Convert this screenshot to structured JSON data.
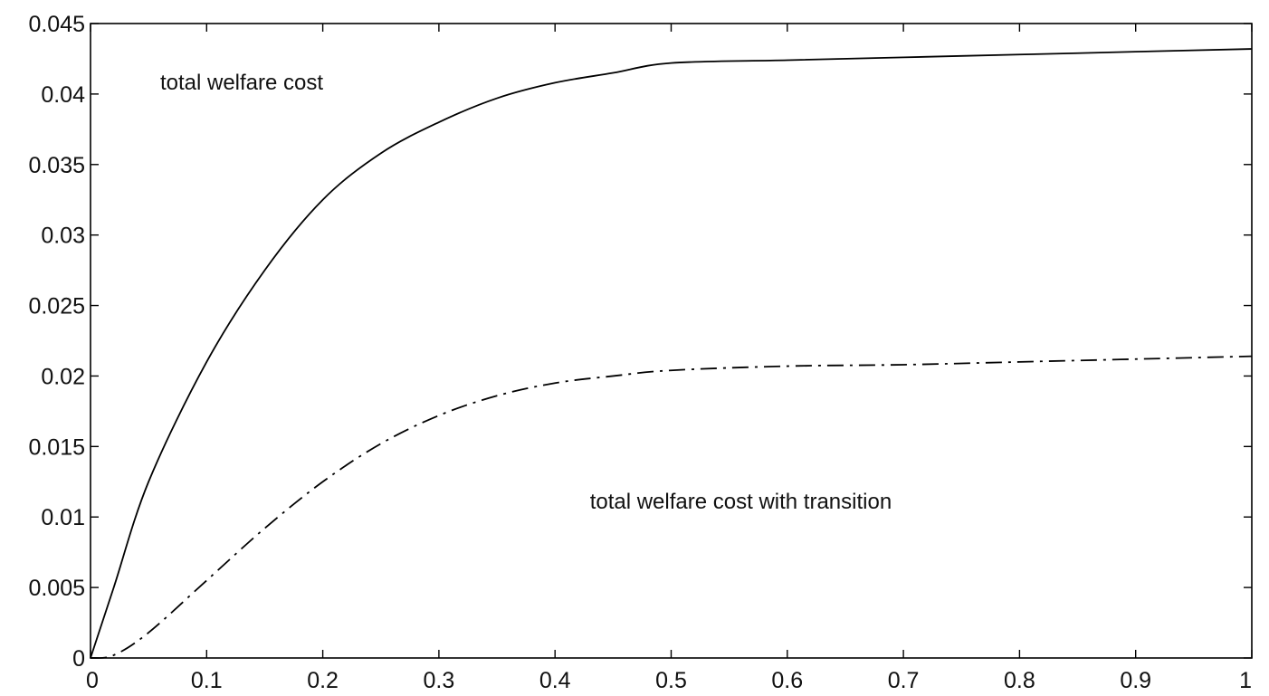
{
  "chart_data": {
    "type": "line",
    "title": "",
    "xlabel": "",
    "ylabel": "",
    "xlim": [
      0,
      1
    ],
    "ylim": [
      0,
      0.045
    ],
    "grid": false,
    "x_ticks": [
      0,
      0.1,
      0.2,
      0.3,
      0.4,
      0.5,
      0.6,
      0.7,
      0.8,
      0.9,
      1
    ],
    "x_tick_labels": [
      "0",
      "0.1",
      "0.2",
      "0.3",
      "0.4",
      "0.5",
      "0.6",
      "0.7",
      "0.8",
      "0.9",
      "1"
    ],
    "y_ticks": [
      0,
      0.005,
      0.01,
      0.015,
      0.02,
      0.025,
      0.03,
      0.035,
      0.04,
      0.045
    ],
    "y_tick_labels": [
      "0",
      "0.005",
      "0.01",
      "0.015",
      "0.02",
      "0.025",
      "0.03",
      "0.035",
      "0.04",
      "0.045"
    ],
    "series": [
      {
        "style": "solid",
        "color": "#000000",
        "x": [
          0,
          0.02,
          0.05,
          0.1,
          0.15,
          0.2,
          0.25,
          0.3,
          0.35,
          0.4,
          0.45,
          0.5,
          0.6,
          0.7,
          0.8,
          0.9,
          1.0
        ],
        "y": [
          0,
          0.005,
          0.0125,
          0.021,
          0.0275,
          0.0325,
          0.0358,
          0.038,
          0.0397,
          0.0408,
          0.0415,
          0.0422,
          0.0424,
          0.0426,
          0.0428,
          0.043,
          0.0432
        ]
      },
      {
        "style": "dashdot",
        "color": "#000000",
        "x": [
          0,
          0.02,
          0.05,
          0.1,
          0.15,
          0.2,
          0.25,
          0.3,
          0.35,
          0.4,
          0.45,
          0.5,
          0.6,
          0.7,
          0.8,
          0.9,
          1.0
        ],
        "y": [
          0,
          0.0002,
          0.0018,
          0.0055,
          0.0092,
          0.0125,
          0.0152,
          0.0172,
          0.0186,
          0.0195,
          0.02,
          0.0204,
          0.0207,
          0.0208,
          0.021,
          0.0212,
          0.0214
        ]
      }
    ],
    "annotations": [
      {
        "text": "total welfare cost",
        "x": 0.06,
        "y": 0.0403
      },
      {
        "text": "total welfare cost with transition",
        "x": 0.43,
        "y": 0.0106
      }
    ]
  }
}
